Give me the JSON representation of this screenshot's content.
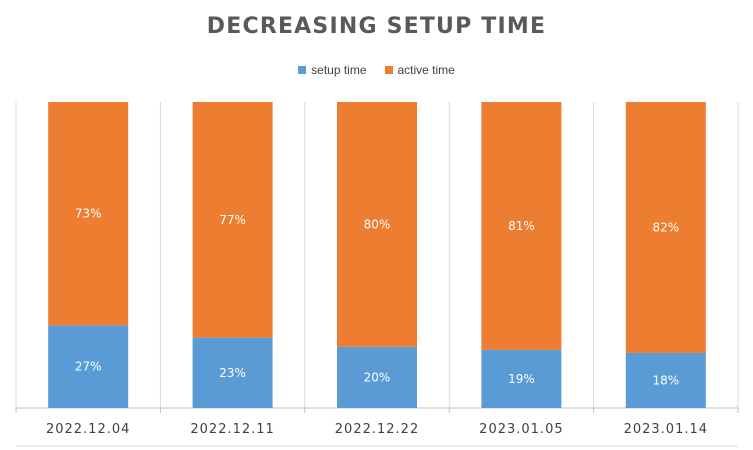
{
  "chart_data": {
    "type": "bar",
    "stacked": true,
    "percent_stacked": true,
    "title": "DECREASING SETUP TIME",
    "categories": [
      "2022.12.04",
      "2022.12.11",
      "2022.12.22",
      "2023.01.05",
      "2023.01.14"
    ],
    "series": [
      {
        "name": "setup time",
        "color": "#5B9BD5",
        "values": [
          27,
          23,
          20,
          19,
          18
        ],
        "labels": [
          "27%",
          "23%",
          "20%",
          "19%",
          "18%"
        ]
      },
      {
        "name": "active time",
        "color": "#ED7D31",
        "values": [
          73,
          77,
          80,
          81,
          82
        ],
        "labels": [
          "73%",
          "77%",
          "80%",
          "81%",
          "82%"
        ]
      }
    ],
    "ylim": [
      0,
      100
    ],
    "xlabel": "",
    "ylabel": "",
    "legend_position": "top",
    "grid": true
  }
}
